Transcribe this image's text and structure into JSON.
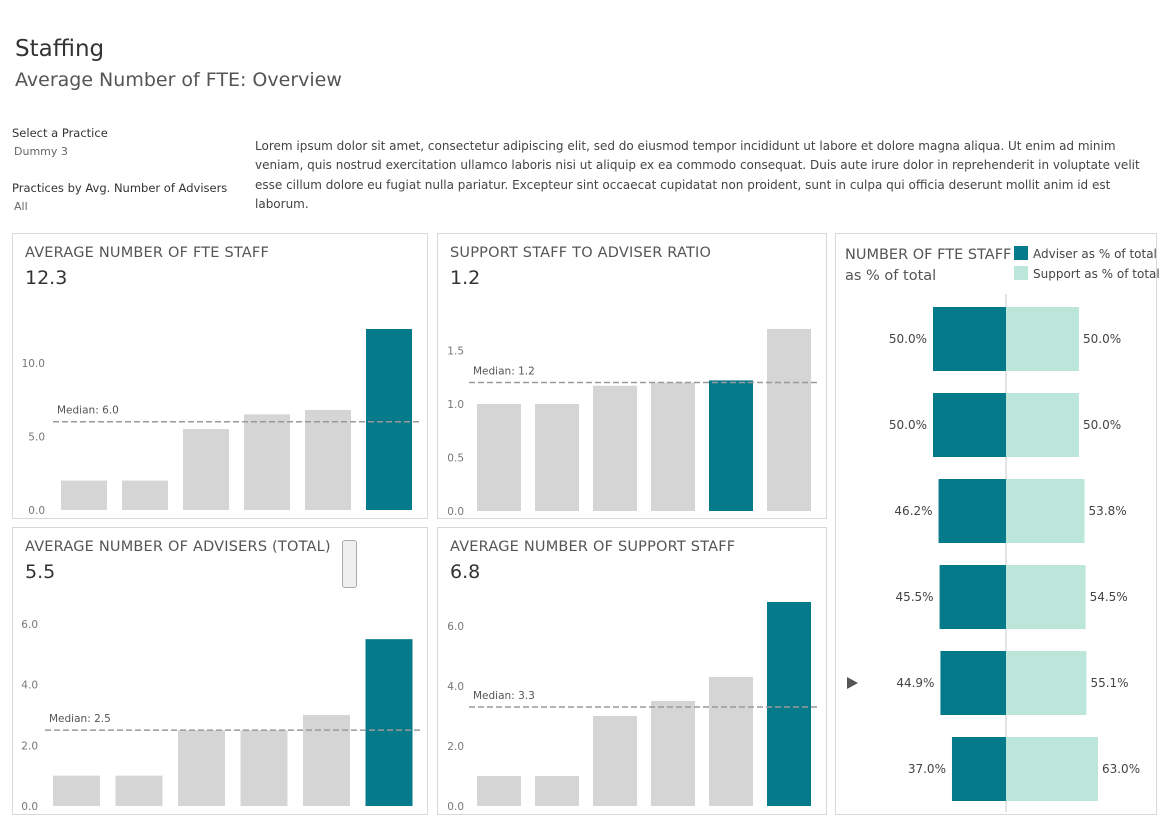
{
  "header": {
    "title": "Staffing",
    "subtitle": "Average Number of FTE: Overview"
  },
  "filters": [
    {
      "label": "Select a Practice",
      "value": "Dummy 3"
    },
    {
      "label": "Practices by Avg. Number of Advisers",
      "value": "All"
    }
  ],
  "description": "Lorem ipsum dolor sit amet, consectetur adipiscing elit, sed do eiusmod tempor incididunt ut labore et dolore magna aliqua. Ut enim ad minim veniam, quis nostrud exercitation ullamco laboris nisi ut aliquip ex ea commodo consequat. Duis aute irure dolor in reprehenderit in voluptate velit esse cillum dolore eu fugiat nulla pariatur. Excepteur sint occaecat cupidatat non proident, sunt in culpa qui officia deserunt mollit anim id est laborum.",
  "colors": {
    "highlight": "#047a8a",
    "bar": "#d5d5d5",
    "support": "#bde6da",
    "median": "#9a9a9a"
  },
  "panels": {
    "fte": {
      "title": "AVERAGE NUMBER OF FTE STAFF",
      "value": "12.3"
    },
    "ratio": {
      "title": "SUPPORT STAFF TO ADVISER RATIO",
      "value": "1.2"
    },
    "advisers": {
      "title": "AVERAGE NUMBER OF ADVISERS (TOTAL)",
      "value": "5.5"
    },
    "support": {
      "title": "AVERAGE NUMBER OF SUPPORT STAFF",
      "value": "6.8"
    },
    "pct": {
      "title": "NUMBER OF FTE STAFF",
      "title2": "as % of total",
      "legend": [
        "Adviser as % of total",
        "Support as % of total"
      ]
    }
  },
  "chart_data": [
    {
      "type": "bar",
      "title": "AVERAGE NUMBER OF FTE STAFF",
      "values": [
        2.0,
        2.0,
        5.5,
        6.5,
        6.8,
        12.3
      ],
      "highlight_index": 5,
      "yticks": [
        "0.0",
        "5.0",
        "10.0"
      ],
      "ylim": [
        0,
        12.3
      ],
      "median": 6.0,
      "median_label": "Median: 6.0"
    },
    {
      "type": "bar",
      "title": "SUPPORT STAFF TO ADVISER RATIO",
      "values": [
        1.0,
        1.0,
        1.17,
        1.2,
        1.22,
        1.7
      ],
      "highlight_index": 4,
      "yticks": [
        "0.0",
        "0.5",
        "1.0",
        "1.5"
      ],
      "ylim": [
        0,
        1.7
      ],
      "median": 1.2,
      "median_label": "Median: 1.2"
    },
    {
      "type": "bar",
      "title": "AVERAGE NUMBER OF ADVISERS (TOTAL)",
      "values": [
        1.0,
        1.0,
        2.5,
        2.5,
        3.0,
        5.5
      ],
      "highlight_index": 5,
      "yticks": [
        "0.0",
        "2.0",
        "4.0",
        "6.0"
      ],
      "ylim": [
        0,
        6.0
      ],
      "median": 2.5,
      "median_label": "Median: 2.5"
    },
    {
      "type": "bar",
      "title": "AVERAGE NUMBER OF SUPPORT STAFF",
      "values": [
        1.0,
        1.0,
        3.0,
        3.5,
        4.3,
        6.8
      ],
      "highlight_index": 5,
      "yticks": [
        "0.0",
        "2.0",
        "4.0",
        "6.0"
      ],
      "ylim": [
        0,
        6.0
      ],
      "median": 3.3,
      "median_label": "Median: 3.3"
    },
    {
      "type": "bar",
      "orientation": "horizontal-diverging",
      "title": "NUMBER OF FTE STAFF as % of total",
      "series": [
        {
          "name": "Adviser as % of total",
          "values": [
            50.0,
            50.0,
            46.2,
            45.5,
            44.9,
            37.0
          ]
        },
        {
          "name": "Support as % of total",
          "values": [
            50.0,
            50.0,
            53.8,
            54.5,
            55.1,
            63.0
          ]
        }
      ],
      "adviser_labels": [
        "50.0%",
        "50.0%",
        "46.2%",
        "45.5%",
        "44.9%",
        "37.0%"
      ],
      "support_labels": [
        "50.0%",
        "50.0%",
        "53.8%",
        "54.5%",
        "55.1%",
        "63.0%"
      ],
      "selected_row": 4
    }
  ]
}
